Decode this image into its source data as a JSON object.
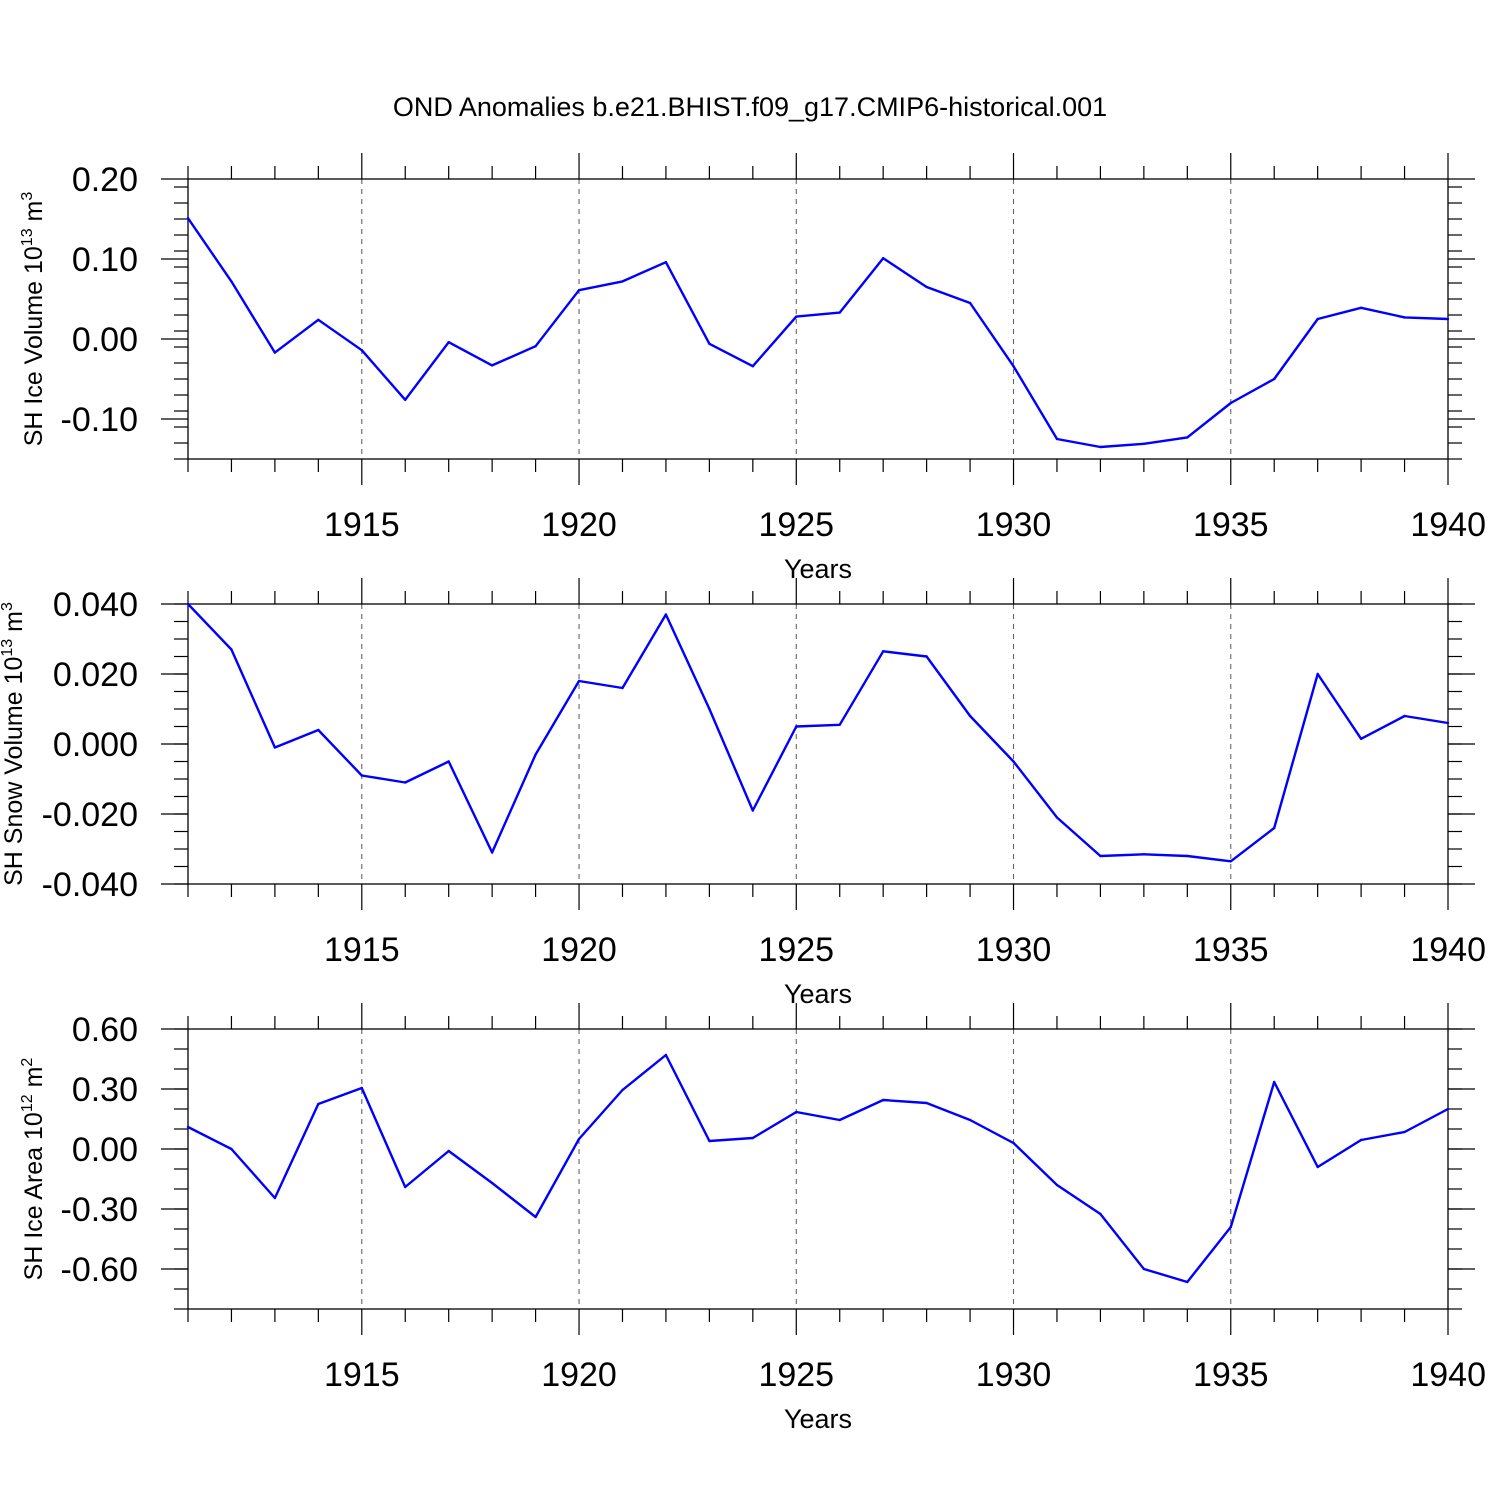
{
  "figure": {
    "title": "OND Anomalies b.e21.BHIST.f09_g17.CMIP6-historical.001",
    "line_color": "#0000ff"
  },
  "chart_data": [
    {
      "type": "line",
      "ylabel": {
        "prefix": "SH Ice Volume 10",
        "exp": "13",
        "mid": " m",
        "unit_exp": "3"
      },
      "xlabel": "Years",
      "xlim": [
        1911,
        1940
      ],
      "ylim": [
        -0.15,
        0.2
      ],
      "x_ticks": [
        1915,
        1920,
        1925,
        1930,
        1935,
        1940
      ],
      "y_ticks": [
        -0.1,
        0.0,
        0.1,
        0.2
      ],
      "y_tick_labels": [
        "-0.10",
        "0.00",
        "0.10",
        "0.20"
      ],
      "y_minor_step": 0.02,
      "grid": "dashed vertical at major x ticks",
      "x": [
        1911,
        1912,
        1913,
        1914,
        1915,
        1916,
        1917,
        1918,
        1919,
        1920,
        1921,
        1922,
        1923,
        1924,
        1925,
        1926,
        1927,
        1928,
        1929,
        1930,
        1931,
        1932,
        1933,
        1934,
        1935,
        1936,
        1937,
        1938,
        1939,
        1940
      ],
      "values": [
        0.151,
        0.072,
        -0.017,
        0.024,
        -0.014,
        -0.076,
        -0.004,
        -0.033,
        -0.009,
        0.061,
        0.072,
        0.096,
        -0.006,
        -0.034,
        0.028,
        0.033,
        0.101,
        0.065,
        0.045,
        -0.034,
        -0.125,
        -0.135,
        -0.131,
        -0.123,
        -0.08,
        -0.05,
        0.025,
        0.039,
        0.027,
        0.025
      ]
    },
    {
      "type": "line",
      "ylabel": {
        "prefix": "SH Snow Volume 10",
        "exp": "13",
        "mid": " m",
        "unit_exp": "3"
      },
      "xlabel": "Years",
      "xlim": [
        1911,
        1940
      ],
      "ylim": [
        -0.04,
        0.04
      ],
      "x_ticks": [
        1915,
        1920,
        1925,
        1930,
        1935,
        1940
      ],
      "y_ticks": [
        -0.04,
        -0.02,
        0.0,
        0.02,
        0.04
      ],
      "y_tick_labels": [
        "-0.040",
        "-0.020",
        "0.000",
        "0.020",
        "0.040"
      ],
      "y_minor_step": 0.005,
      "grid": "dashed vertical at major x ticks",
      "x": [
        1911,
        1912,
        1913,
        1914,
        1915,
        1916,
        1917,
        1918,
        1919,
        1920,
        1921,
        1922,
        1923,
        1924,
        1925,
        1926,
        1927,
        1928,
        1929,
        1930,
        1931,
        1932,
        1933,
        1934,
        1935,
        1936,
        1937,
        1938,
        1939,
        1940
      ],
      "values": [
        0.04,
        0.027,
        -0.001,
        0.004,
        -0.009,
        -0.011,
        -0.005,
        -0.031,
        -0.003,
        0.018,
        0.016,
        0.037,
        0.01,
        -0.019,
        0.005,
        0.0055,
        0.0265,
        0.025,
        0.008,
        -0.005,
        -0.021,
        -0.032,
        -0.0315,
        -0.032,
        -0.0335,
        -0.024,
        0.02,
        0.0015,
        0.008,
        0.006
      ]
    },
    {
      "type": "line",
      "ylabel": {
        "prefix": "SH Ice Area 10",
        "exp": "12",
        "mid": " m",
        "unit_exp": "2"
      },
      "xlabel": "Years",
      "xlim": [
        1911,
        1940
      ],
      "ylim": [
        -0.8,
        0.6
      ],
      "x_ticks": [
        1915,
        1920,
        1925,
        1930,
        1935,
        1940
      ],
      "y_ticks": [
        -0.6,
        -0.3,
        0.0,
        0.3,
        0.6
      ],
      "y_tick_labels": [
        "-0.60",
        "-0.30",
        "0.00",
        "0.30",
        "0.60"
      ],
      "y_minor_step": 0.1,
      "grid": "dashed vertical at major x ticks",
      "x": [
        1911,
        1912,
        1913,
        1914,
        1915,
        1916,
        1917,
        1918,
        1919,
        1920,
        1921,
        1922,
        1923,
        1924,
        1925,
        1926,
        1927,
        1928,
        1929,
        1930,
        1931,
        1932,
        1933,
        1934,
        1935,
        1936,
        1937,
        1938,
        1939,
        1940
      ],
      "values": [
        0.11,
        0.0,
        -0.245,
        0.225,
        0.305,
        -0.19,
        -0.01,
        -0.17,
        -0.34,
        0.05,
        0.295,
        0.47,
        0.04,
        0.055,
        0.185,
        0.145,
        0.245,
        0.23,
        0.145,
        0.03,
        -0.18,
        -0.325,
        -0.6,
        -0.665,
        -0.39,
        0.335,
        -0.09,
        0.045,
        0.085,
        0.2
      ]
    }
  ]
}
